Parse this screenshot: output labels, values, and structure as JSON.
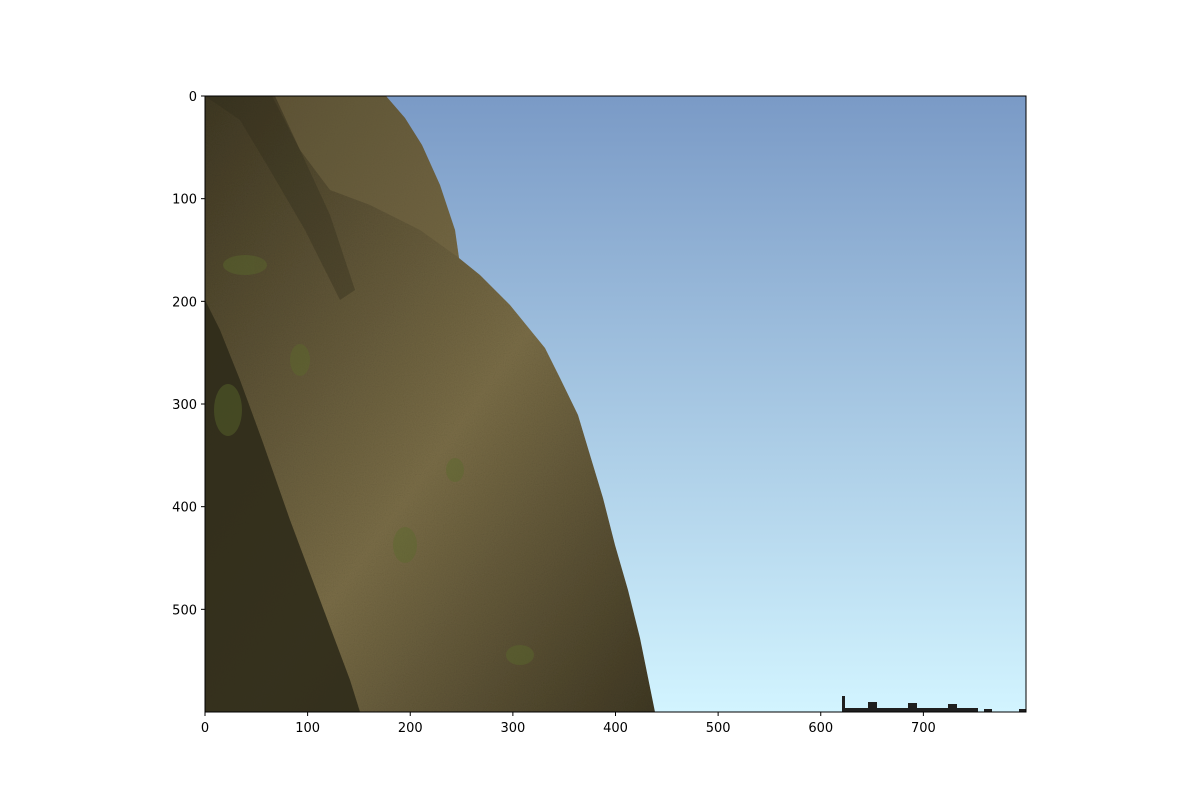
{
  "figure": {
    "type": "image",
    "scene": "3D terrain render: grassy rock cliff on the left, sky gradient on the right, distant structures near the horizon",
    "x_axis": {
      "range": [
        0,
        800
      ],
      "ticks": [
        "0",
        "100",
        "200",
        "300",
        "400",
        "500",
        "600",
        "700"
      ]
    },
    "y_axis": {
      "range": [
        0,
        600
      ],
      "inverted": true,
      "ticks": [
        "0",
        "100",
        "200",
        "300",
        "400",
        "500"
      ]
    },
    "colors": {
      "sky_top": "#7a9ac6",
      "sky_bottom": "#d2f4ff",
      "cliff_light": "#7a6d47",
      "cliff_dark": "#3f3823",
      "cliff_shadow": "#2f2b19",
      "moss": "#5c6a2c",
      "structures": "#1f1f1f"
    }
  }
}
